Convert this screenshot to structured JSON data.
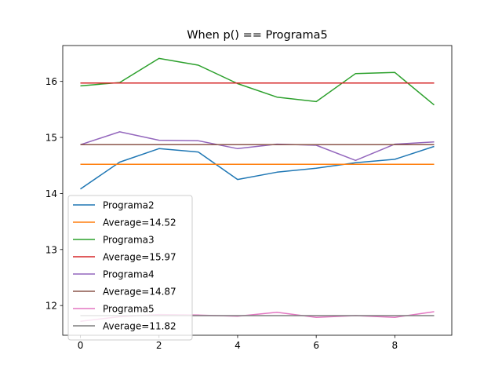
{
  "chart_data": {
    "type": "line",
    "title": "When p() == Programa5",
    "xlabel": "",
    "ylabel": "",
    "xlim": [
      -0.45,
      9.45
    ],
    "ylim": [
      11.47,
      16.64
    ],
    "xticks": [
      0,
      2,
      4,
      6,
      8
    ],
    "yticks": [
      12,
      13,
      14,
      15,
      16
    ],
    "grid": false,
    "legend_position": "lower-left",
    "x": [
      0,
      1,
      2,
      3,
      4,
      5,
      6,
      7,
      8,
      9
    ],
    "series": [
      {
        "name": "Programa2",
        "color": "#1f77b4",
        "values": [
          14.08,
          14.56,
          14.8,
          14.74,
          14.25,
          14.38,
          14.45,
          14.55,
          14.61,
          14.84
        ]
      },
      {
        "name": "Average=14.52",
        "color": "#ff7f0e",
        "values": [
          14.52,
          14.52,
          14.52,
          14.52,
          14.52,
          14.52,
          14.52,
          14.52,
          14.52,
          14.52
        ]
      },
      {
        "name": "Programa3",
        "color": "#2ca02c",
        "values": [
          15.92,
          15.98,
          16.41,
          16.29,
          15.96,
          15.72,
          15.64,
          16.14,
          16.16,
          15.58
        ]
      },
      {
        "name": "Average=15.97",
        "color": "#d62728",
        "values": [
          15.97,
          15.97,
          15.97,
          15.97,
          15.97,
          15.97,
          15.97,
          15.97,
          15.97,
          15.97
        ]
      },
      {
        "name": "Programa4",
        "color": "#9467bd",
        "values": [
          14.87,
          15.1,
          14.95,
          14.94,
          14.8,
          14.88,
          14.86,
          14.59,
          14.88,
          14.92
        ]
      },
      {
        "name": "Average=14.87",
        "color": "#8c564b",
        "values": [
          14.87,
          14.87,
          14.87,
          14.87,
          14.87,
          14.87,
          14.87,
          14.87,
          14.87,
          14.87
        ]
      },
      {
        "name": "Programa5",
        "color": "#e377c2",
        "values": [
          11.72,
          11.8,
          11.84,
          11.83,
          11.81,
          11.88,
          11.79,
          11.82,
          11.79,
          11.89
        ]
      },
      {
        "name": "Average=11.82",
        "color": "#7f7f7f",
        "values": [
          11.82,
          11.82,
          11.82,
          11.82,
          11.82,
          11.82,
          11.82,
          11.82,
          11.82,
          11.82
        ]
      }
    ]
  }
}
